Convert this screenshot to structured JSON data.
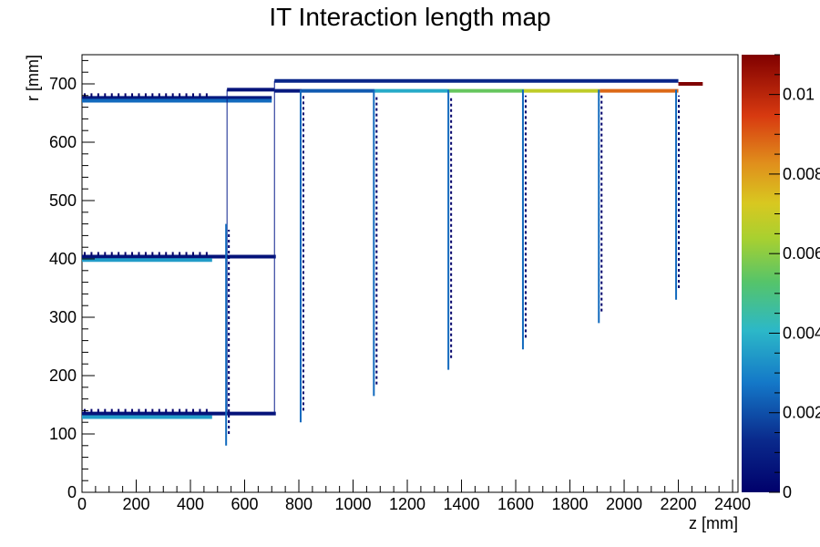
{
  "chart_data": {
    "type": "heatmap",
    "title": "IT Interaction length map",
    "xlabel": "z [mm]",
    "ylabel": "r [mm]",
    "xlim": [
      0,
      2420
    ],
    "ylim": [
      0,
      750
    ],
    "x_ticks": [
      0,
      200,
      400,
      600,
      800,
      1000,
      1200,
      1400,
      1600,
      1800,
      2000,
      2200,
      2400
    ],
    "y_ticks": [
      0,
      100,
      200,
      300,
      400,
      500,
      600,
      700
    ],
    "colorbar": {
      "min": 0,
      "max": 0.011,
      "ticks": [
        0,
        0.002,
        0.004,
        0.006,
        0.008,
        0.01
      ],
      "tick_labels": [
        "0",
        "0.002",
        "0.004",
        "0.006",
        "0.008",
        "0.01"
      ]
    },
    "barrel_layers": [
      {
        "r": 676,
        "z_min": 0,
        "z_max": 700,
        "value": 0.0008
      },
      {
        "r": 671,
        "z_min": 0,
        "z_max": 700,
        "value": 0.0025
      },
      {
        "r": 404,
        "z_min": 0,
        "z_max": 715,
        "value": 0.0006
      },
      {
        "r": 398,
        "z_min": 0,
        "z_max": 480,
        "value": 0.0035
      },
      {
        "r": 135,
        "z_min": 0,
        "z_max": 715,
        "value": 0.0006
      },
      {
        "r": 129,
        "z_min": 0,
        "z_max": 480,
        "value": 0.0035
      }
    ],
    "service_lines": [
      {
        "r": 705,
        "z_min": 710,
        "z_max": 2200,
        "value": 0.0012
      },
      {
        "r": 690,
        "z_min": 535,
        "z_max": 710,
        "value": 0.0006
      },
      {
        "r": 688,
        "z_min": 710,
        "z_max": 810,
        "value": 0.0008
      },
      {
        "r": 688,
        "z_min": 810,
        "z_max": 1080,
        "value": 0.0022
      },
      {
        "r": 688,
        "z_min": 1080,
        "z_max": 1350,
        "value": 0.0038
      },
      {
        "r": 688,
        "z_min": 1350,
        "z_max": 1630,
        "value": 0.0055
      },
      {
        "r": 688,
        "z_min": 1630,
        "z_max": 1910,
        "value": 0.0068
      },
      {
        "r": 688,
        "z_min": 1910,
        "z_max": 2200,
        "value": 0.0088
      },
      {
        "r": 700,
        "z_min": 2200,
        "z_max": 2290,
        "value": 0.011
      }
    ],
    "disks": [
      {
        "z": 535,
        "r_min": 80,
        "r_max": 460,
        "value": 0.0025
      },
      {
        "z": 810,
        "r_min": 120,
        "r_max": 690,
        "value": 0.0025
      },
      {
        "z": 1080,
        "r_min": 165,
        "r_max": 690,
        "value": 0.0025
      },
      {
        "z": 1355,
        "r_min": 210,
        "r_max": 690,
        "value": 0.0025
      },
      {
        "z": 1630,
        "r_min": 245,
        "r_max": 690,
        "value": 0.0025
      },
      {
        "z": 1910,
        "r_min": 290,
        "r_max": 690,
        "value": 0.0025
      },
      {
        "z": 2195,
        "r_min": 330,
        "r_max": 690,
        "value": 0.0025
      }
    ]
  }
}
